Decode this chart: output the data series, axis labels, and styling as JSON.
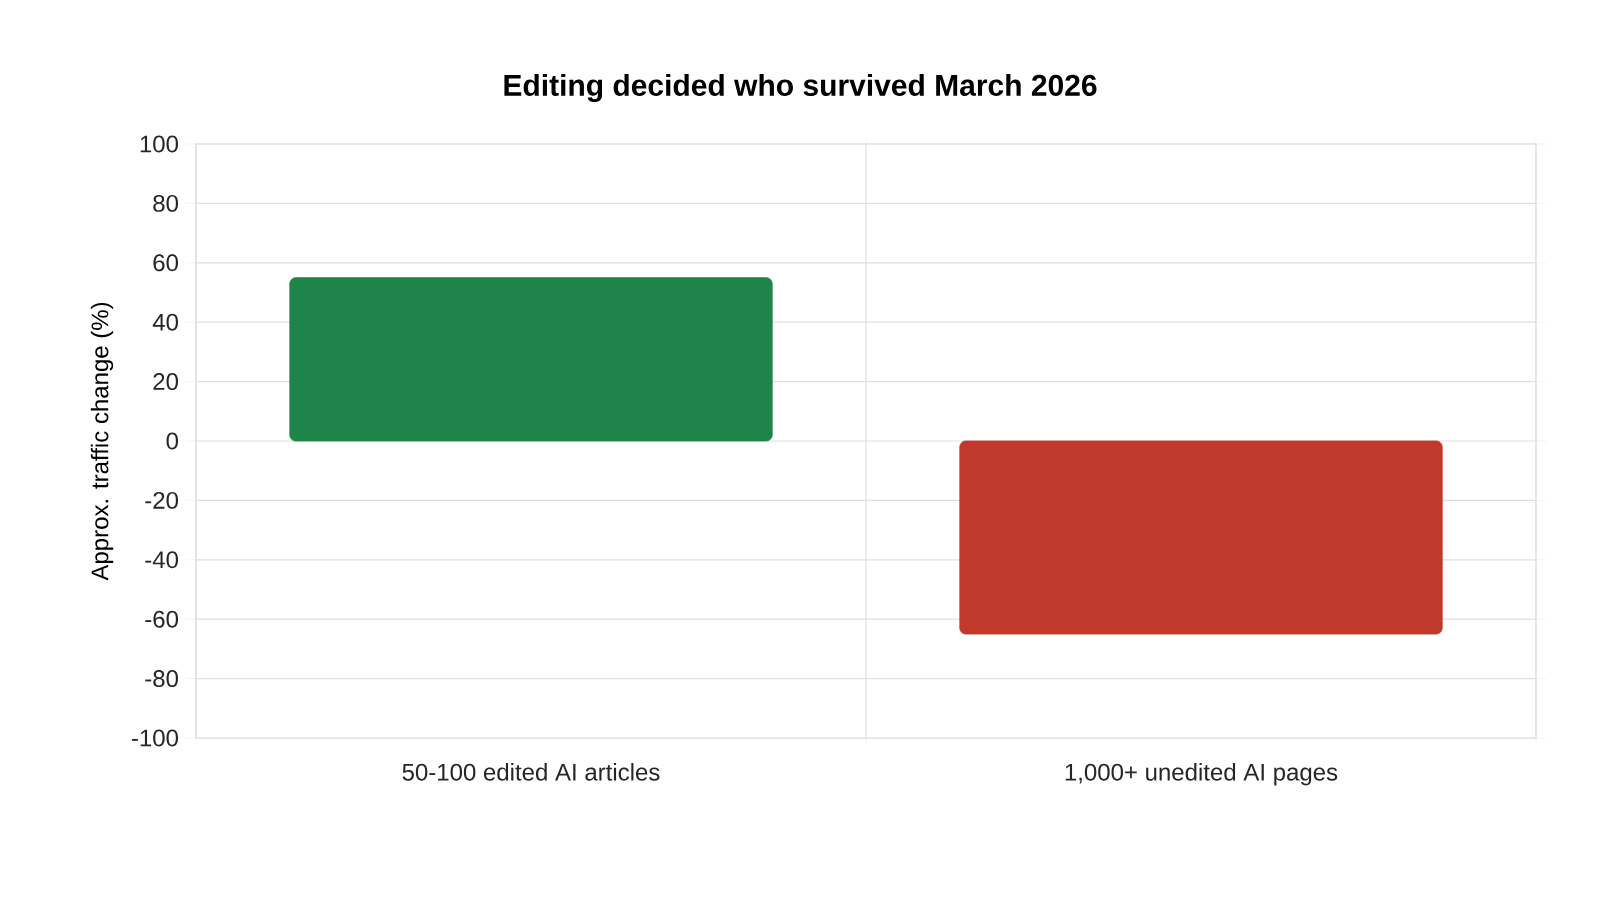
{
  "chart_data": {
    "type": "bar",
    "title": "Editing decided who survived March 2026",
    "ylabel": "Approx. traffic change (%)",
    "categories": [
      "50-100 edited AI articles",
      "1,000+ unedited AI pages"
    ],
    "values": [
      55,
      -65
    ],
    "colors": [
      "#1e8449",
      "#c0392b"
    ],
    "ylim": [
      -100,
      100
    ],
    "yticks": [
      -100,
      -80,
      -60,
      -40,
      -20,
      0,
      20,
      40,
      60,
      80,
      100
    ],
    "grid": true
  }
}
